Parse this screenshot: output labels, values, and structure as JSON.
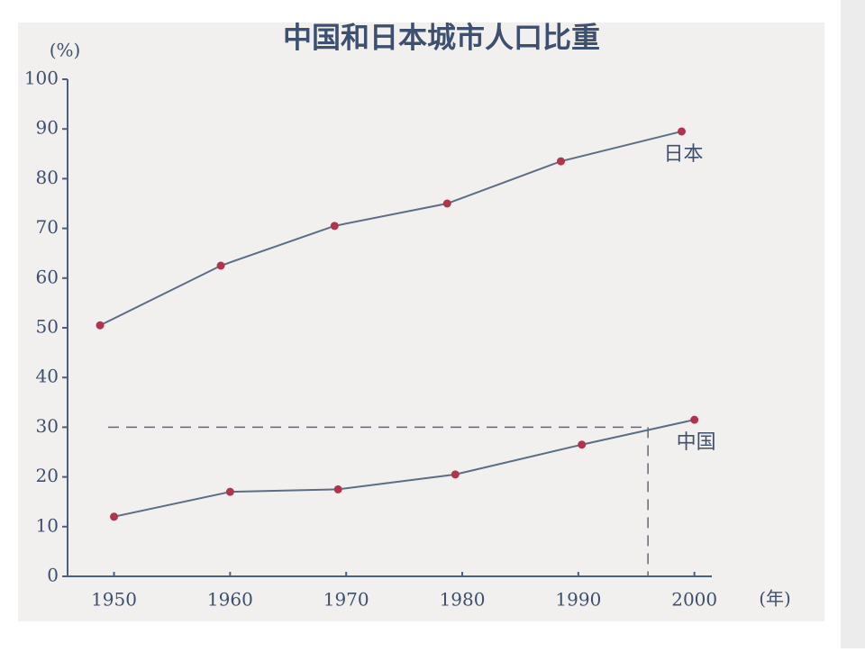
{
  "chart_data": {
    "type": "line",
    "title": "中国和日本城市人口比重",
    "y_unit": "(%)",
    "x_unit": "(年)",
    "series": [
      {
        "name": "日本",
        "color": "#5b6e86",
        "marker_color": "#b0344e",
        "x": [
          1948.8,
          1959.2,
          1969,
          1978.7,
          1988.5,
          1998.9
        ],
        "values": [
          50.5,
          62.5,
          70.5,
          75,
          83.5,
          89.5
        ]
      },
      {
        "name": "中国",
        "color": "#5b6e86",
        "marker_color": "#b0344e",
        "x": [
          1950,
          1960,
          1969.3,
          1979.4,
          1990.3,
          2000
        ],
        "values": [
          12,
          17,
          17.5,
          20.5,
          26.5,
          31.5
        ]
      }
    ],
    "reference": {
      "x": 1996,
      "y": 30
    },
    "xlim": [
      1946,
      2001.5
    ],
    "xticks": [
      1950,
      1960,
      1970,
      1980,
      1990,
      2000
    ],
    "ylim": [
      0,
      100
    ],
    "yticks": [
      0,
      10,
      20,
      30,
      40,
      50,
      60,
      70,
      80,
      90,
      100
    ]
  }
}
